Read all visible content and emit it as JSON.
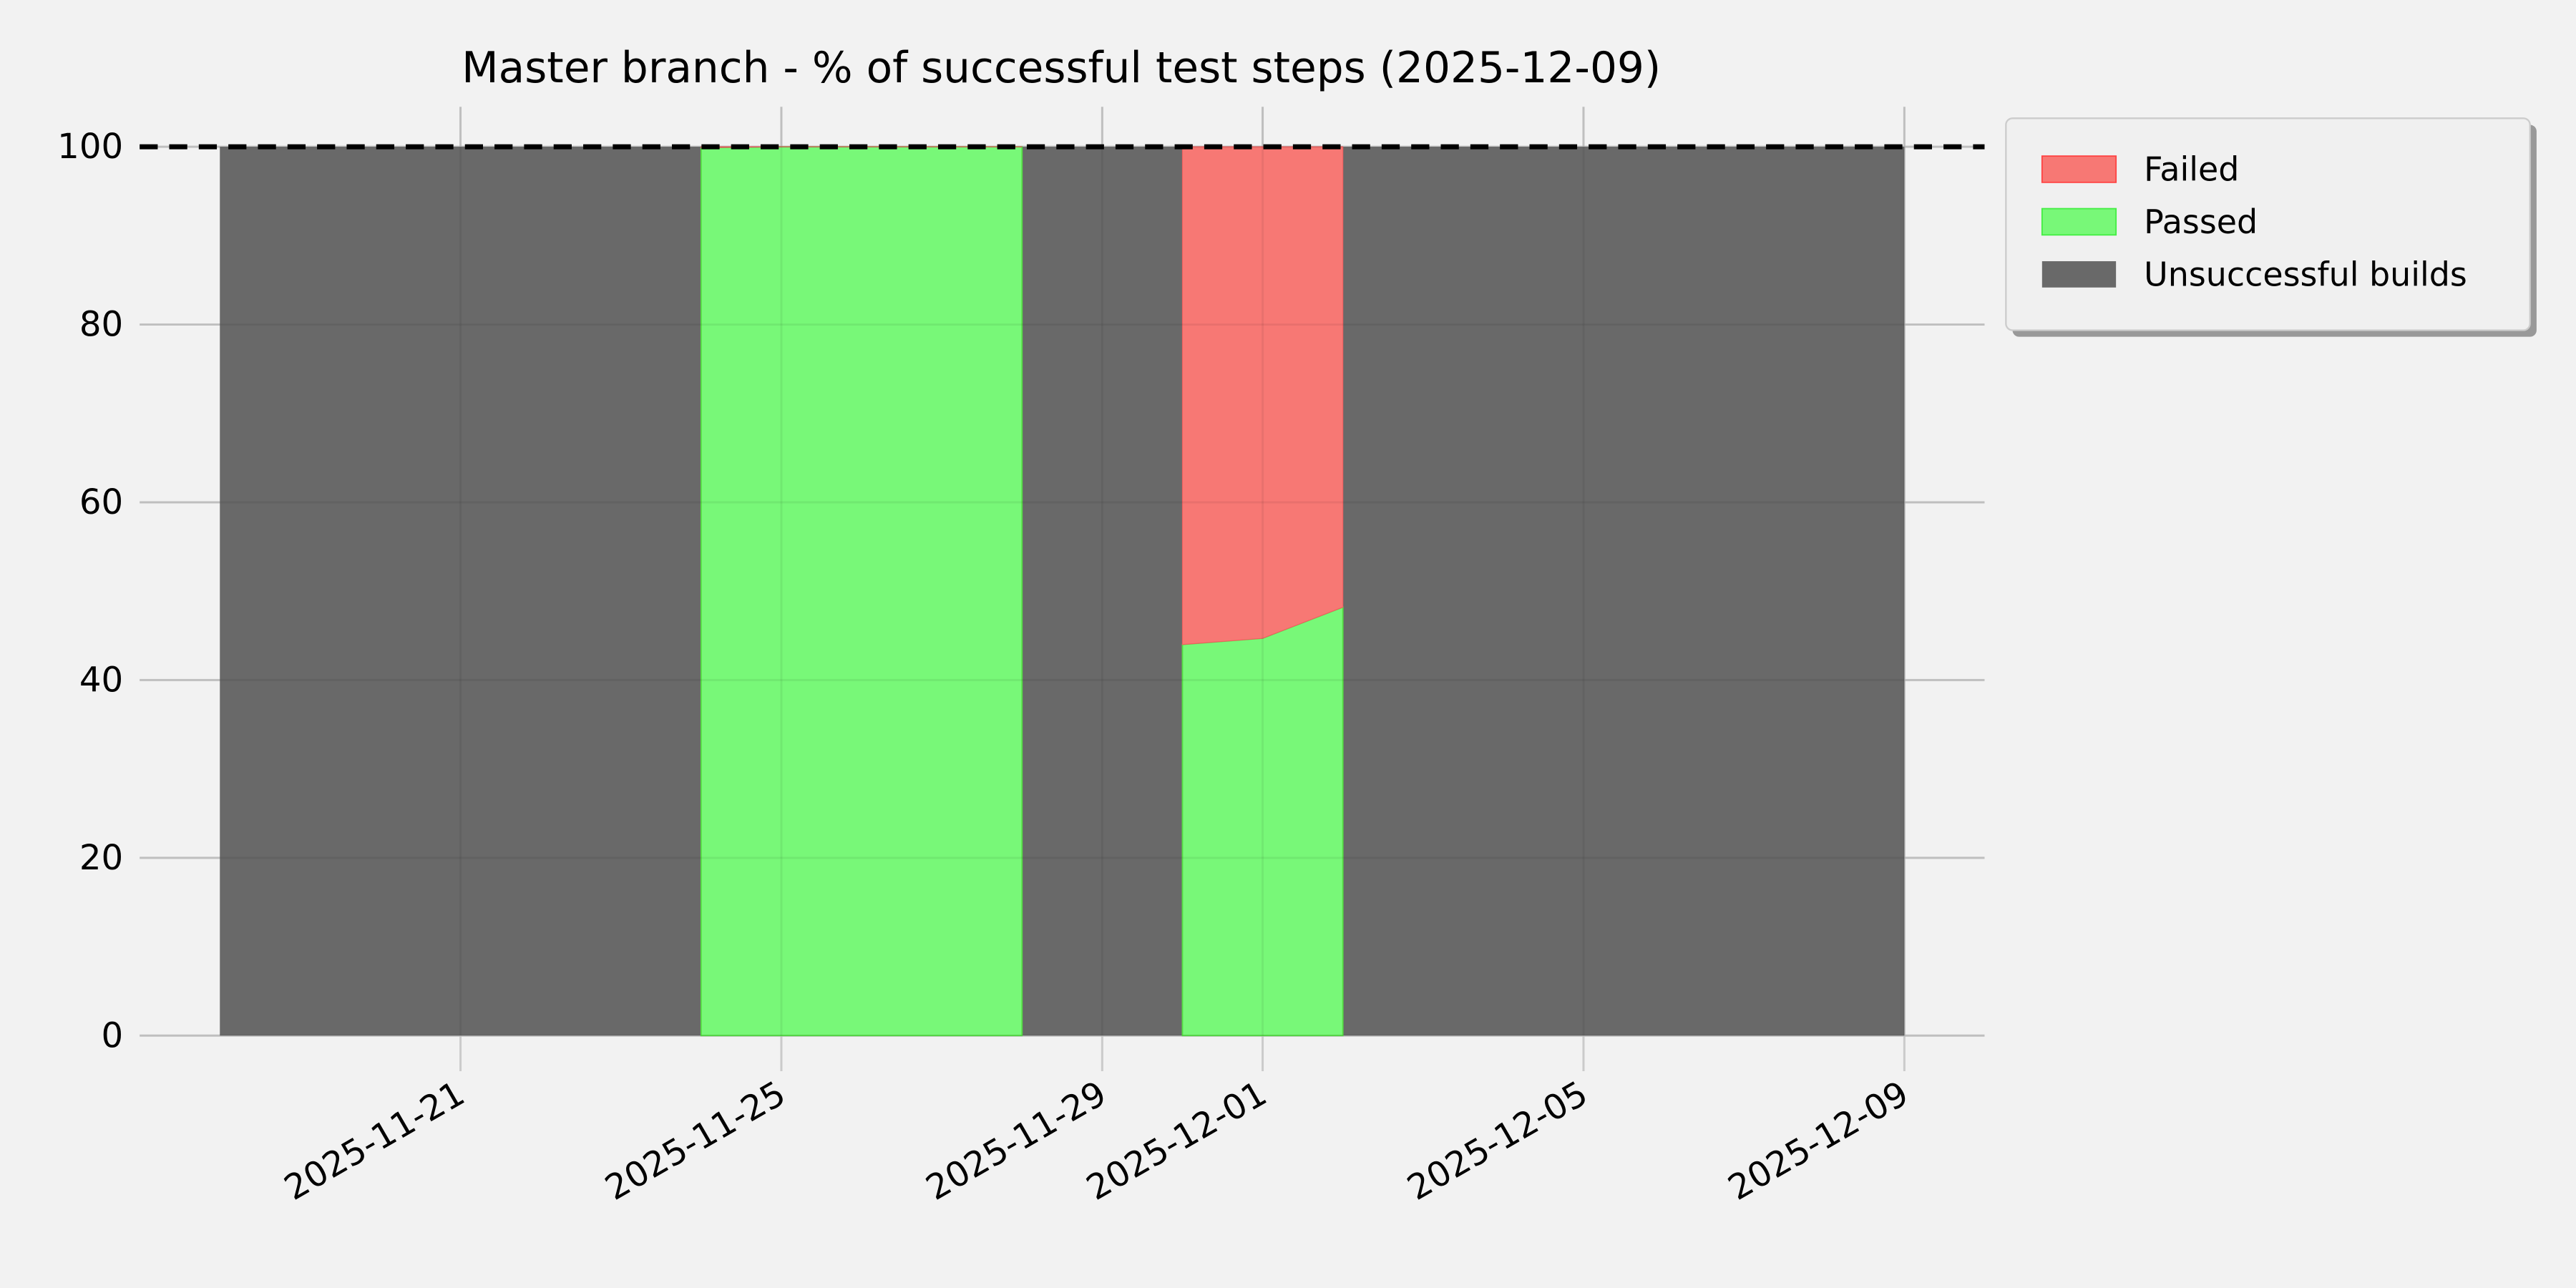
{
  "chart_data": {
    "type": "area",
    "stacked": true,
    "title": "Master branch - % of successful test steps (2025-12-09)",
    "xlabel": "",
    "ylabel": "",
    "xlim": [
      "2025-11-17",
      "2025-12-10"
    ],
    "ylim": [
      -4,
      104.5
    ],
    "x_ticks": [
      "2025-11-21",
      "2025-11-25",
      "2025-11-29",
      "2025-12-01",
      "2025-12-05",
      "2025-12-09"
    ],
    "y_ticks": [
      0,
      20,
      40,
      60,
      80,
      100
    ],
    "grid": true,
    "reference_line": {
      "y": 100,
      "style": "dashed",
      "color": "#000000"
    },
    "legend": {
      "placement": "outside-top-right",
      "entries": [
        "Failed",
        "Passed",
        "Unsuccessful builds"
      ]
    },
    "colors": {
      "Failed": "#f77874",
      "Passed": "#78f878",
      "Unsuccessful builds": "#696969",
      "background": "#f2f2f2"
    },
    "x": [
      "2025-11-18",
      "2025-11-19",
      "2025-11-20",
      "2025-11-21",
      "2025-11-22",
      "2025-11-23",
      "2025-11-24",
      "2025-11-25",
      "2025-11-26",
      "2025-11-27",
      "2025-11-28",
      "2025-11-29",
      "2025-11-30",
      "2025-12-01",
      "2025-12-02",
      "2025-12-03",
      "2025-12-04",
      "2025-12-05",
      "2025-12-06",
      "2025-12-07",
      "2025-12-08",
      "2025-12-09"
    ],
    "series": [
      {
        "name": "Passed",
        "values": [
          null,
          null,
          null,
          null,
          null,
          null,
          99.9,
          100,
          100,
          100,
          100,
          null,
          44.0,
          44.7,
          48.2,
          null,
          null,
          null,
          null,
          null,
          null,
          null
        ]
      },
      {
        "name": "Failed",
        "values": [
          null,
          null,
          null,
          null,
          null,
          null,
          0.1,
          0,
          0,
          0,
          0,
          null,
          56.0,
          55.3,
          51.8,
          null,
          null,
          null,
          null,
          null,
          null,
          null
        ]
      },
      {
        "name": "Unsuccessful builds",
        "values": [
          100,
          100,
          100,
          100,
          100,
          100,
          null,
          null,
          null,
          null,
          null,
          100,
          null,
          null,
          null,
          100,
          100,
          100,
          100,
          100,
          100,
          100
        ]
      }
    ]
  }
}
